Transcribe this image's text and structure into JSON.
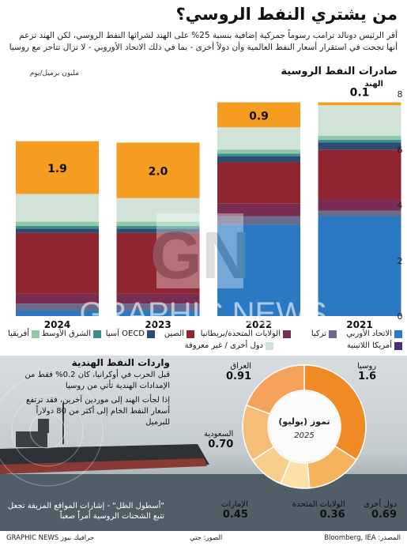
{
  "header": {
    "title": "من يشتري النفط الروسي؟",
    "subtitle": "أقر الرئيس دونالد ترامب رسوماً جمركية إضافية بنسبة 25% على الهند لشرائها النفط الروسي، لكن الهند تزعم أنها نجحت في استقرار أسعار النفط العالمية وأن دولاً أخرى - بما في ذلك الاتحاد الأوروبي - لا تزال تتاجر مع روسيا"
  },
  "chart_data": {
    "type": "bar",
    "stacked": true,
    "title": "صادرات النفط الروسية",
    "ylabel": "مليون برميل/يوم",
    "ylim": [
      0,
      8
    ],
    "yticks": [
      0,
      2,
      4,
      6,
      8
    ],
    "categories": [
      "2024",
      "2023",
      "2022",
      "2021"
    ],
    "series": [
      {
        "name": "الاتحاد الأوربي",
        "color": "#2b79c2",
        "values": [
          0.2,
          0.2,
          3.3,
          3.6
        ]
      },
      {
        "name": "أمريكا اللاتينية",
        "color": "#4b2d7f",
        "values": [
          0.0,
          0.0,
          0.0,
          0.0
        ]
      },
      {
        "name": "تركيا",
        "color": "#6a6a8a",
        "values": [
          0.25,
          0.25,
          0.3,
          0.2
        ]
      },
      {
        "name": "الولايات المتحدة/بريطانيا",
        "color": "#7a2d52",
        "values": [
          0.35,
          0.35,
          0.45,
          0.4
        ]
      },
      {
        "name": "الصين",
        "color": "#8e2530",
        "values": [
          2.2,
          2.2,
          1.5,
          1.8
        ]
      },
      {
        "name": "OECD آسيا",
        "color": "#2c4a73",
        "values": [
          0.15,
          0.15,
          0.2,
          0.25
        ]
      },
      {
        "name": "الشرق الأوسط",
        "color": "#3e8e8a",
        "values": [
          0.1,
          0.1,
          0.1,
          0.1
        ]
      },
      {
        "name": "أفريقيا",
        "color": "#8fc9a8",
        "values": [
          0.15,
          0.15,
          0.15,
          0.15
        ]
      },
      {
        "name": "دول أخرى / غير معروفة",
        "color": "#d1e2d6",
        "values": [
          1.0,
          0.85,
          0.8,
          1.1
        ]
      },
      {
        "name": "الهند",
        "color": "#f59d20",
        "values": [
          1.9,
          2.0,
          0.9,
          0.1
        ]
      }
    ],
    "annotations": [
      {
        "category": "2024",
        "text": "1.9"
      },
      {
        "category": "2023",
        "text": "2.0"
      },
      {
        "category": "2022",
        "text": "0.9"
      },
      {
        "category": "2021",
        "text": "0.1"
      }
    ],
    "india_label": "الهند"
  },
  "legend_rows": [
    [
      "الاتحاد الأوربي",
      "تركيا",
      "الولايات المتحدة/بريطانيا",
      "الصين",
      "OECD آسيا",
      "الشرق الأوسط",
      "أفريقيا"
    ],
    [
      "أمريكا اللاتينية",
      "دول أخرى / غير معروفة"
    ]
  ],
  "imports": {
    "title": "واردات النفط الهندية",
    "para1": "قبل الحرب في أوكرانيا، كان 0.2% فقط من الإمدادات الهندية تأتي من روسيا",
    "para2": "إذا لجأت الهند إلى موردين آخرين، فقد ترتفع أسعار النفط الخام إلى أكثر من 80 دولاراً للبرميل",
    "shadow_fleet": "\"أسطول الظل\" - إشارات المواقع المزيفة تجعل تتبع الشحنات الروسية أمراً صعباً"
  },
  "donut": {
    "center_title": "تموز (يوليو)",
    "center_year": "2025",
    "segments": [
      {
        "name": "روسيا",
        "value": "1.6",
        "color": "#f08a24"
      },
      {
        "name": "دول أخرى",
        "value": "0.69",
        "color": "#f7b25e"
      },
      {
        "name": "الولايات المتحدة",
        "value": "0.36",
        "color": "#fbe1a8"
      },
      {
        "name": "الإمارات",
        "value": "0.45",
        "color": "#f8cf8a"
      },
      {
        "name": "السعودية",
        "value": "0.70",
        "color": "#f7bc75"
      },
      {
        "name": "العراق",
        "value": "0.91",
        "color": "#f5a35a"
      }
    ]
  },
  "footer": {
    "source": "المصدر: Bloomberg, IEA",
    "photo": "الصور: جتي",
    "brand": "GRAPHIC NEWS جرافيك نيوز"
  },
  "watermark": {
    "text": "GRAPHIC NEWS"
  },
  "colors": {
    "india": "#f59d20",
    "eu": "#2b79c2",
    "china": "#8e2530"
  }
}
